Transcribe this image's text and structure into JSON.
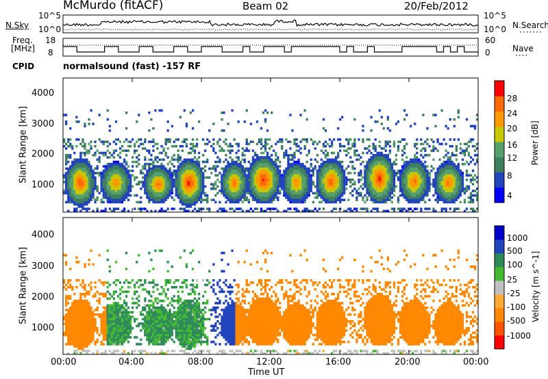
{
  "header": {
    "site": "McMurdo (fitACF)",
    "beam": "Beam 02",
    "date": "20/Feb/2012"
  },
  "noise_panel": {
    "left_label": "N.Sky",
    "right_label": "N.Search",
    "left_ticks": [
      "10^5",
      "10^0"
    ],
    "right_ticks": [
      "10^5",
      "10^0"
    ]
  },
  "freq_panel": {
    "left_label_1": "Freq.",
    "left_label_2": "[MHz]",
    "left_ticks": [
      "18",
      "8"
    ],
    "right_label": "Nave",
    "right_ticks": [
      "60",
      "0"
    ]
  },
  "cpid_label": "CPID",
  "cpid_text": "normalsound (fast) -157 RF",
  "x_ticks": [
    "00:00",
    "04:00",
    "08:00",
    "12:00",
    "16:00",
    "20:00",
    "00:00"
  ],
  "x_label": "Time UT",
  "y_label": "Slant Range [km]",
  "y_ticks": [
    "1000",
    "2000",
    "3000",
    "4000"
  ],
  "colors": {
    "power": [
      "#0000ff",
      "#2244bb",
      "#3f7f5f",
      "#56a06e",
      "#c8c800",
      "#ff9900",
      "#ff6a00",
      "#ff0000"
    ],
    "velocity": [
      "#ff0000",
      "#ff5500",
      "#ff8800",
      "#ffaa33",
      "#c0c0c0",
      "#44bb33",
      "#2f8a5a",
      "#2244bb",
      "#0000cc"
    ]
  },
  "chart_data": [
    {
      "type": "heatmap",
      "title": "Power",
      "xlabel": "Time UT",
      "ylabel": "Slant Range [km]",
      "xlim": [
        0,
        24
      ],
      "ylim": [
        180,
        4600
      ],
      "colorbar": {
        "label": "Power [dB]",
        "ticks": [
          "4",
          "8",
          "12",
          "16",
          "20",
          "24",
          "28"
        ],
        "range": [
          0,
          32
        ]
      },
      "echo_blobs": [
        {
          "t_start": 0.5,
          "t_end": 1.5,
          "range_low": 600,
          "range_high": 1700,
          "peak_db": 28
        },
        {
          "t_start": 2.5,
          "t_end": 3.6,
          "range_low": 700,
          "range_high": 1600,
          "peak_db": 24
        },
        {
          "t_start": 5.0,
          "t_end": 6.0,
          "range_low": 700,
          "range_high": 1500,
          "peak_db": 26
        },
        {
          "t_start": 6.8,
          "t_end": 7.8,
          "range_low": 600,
          "range_high": 1700,
          "peak_db": 30
        },
        {
          "t_start": 9.5,
          "t_end": 10.3,
          "range_low": 700,
          "range_high": 1600,
          "peak_db": 26
        },
        {
          "t_start": 11.0,
          "t_end": 12.2,
          "range_low": 700,
          "range_high": 1800,
          "peak_db": 30
        },
        {
          "t_start": 13.0,
          "t_end": 14.0,
          "range_low": 700,
          "range_high": 1600,
          "peak_db": 24
        },
        {
          "t_start": 15.0,
          "t_end": 16.0,
          "range_low": 700,
          "range_high": 1700,
          "peak_db": 28
        },
        {
          "t_start": 17.8,
          "t_end": 18.8,
          "range_low": 700,
          "range_high": 1900,
          "peak_db": 30
        },
        {
          "t_start": 19.8,
          "t_end": 20.8,
          "range_low": 700,
          "range_high": 1700,
          "peak_db": 26
        },
        {
          "t_start": 21.8,
          "t_end": 22.8,
          "range_low": 700,
          "range_high": 1600,
          "peak_db": 26
        }
      ]
    },
    {
      "type": "heatmap",
      "title": "Velocity",
      "xlabel": "Time UT",
      "ylabel": "Slant Range [km]",
      "xlim": [
        0,
        24
      ],
      "ylim": [
        180,
        4600
      ],
      "colorbar": {
        "label": "Velocity [m s^-1]",
        "ticks": [
          "1000",
          "500",
          "100",
          "25",
          "-25",
          "-100",
          "-500",
          "-1000"
        ],
        "range": [
          -1300,
          1300
        ]
      },
      "dominant_velocity_by_period": [
        {
          "t_start": 0.0,
          "t_end": 2.5,
          "velocity": -200
        },
        {
          "t_start": 2.5,
          "t_end": 8.5,
          "velocity": 120
        },
        {
          "t_start": 8.5,
          "t_end": 10.0,
          "velocity": 600
        },
        {
          "t_start": 10.0,
          "t_end": 24.0,
          "velocity": -250
        }
      ]
    }
  ]
}
